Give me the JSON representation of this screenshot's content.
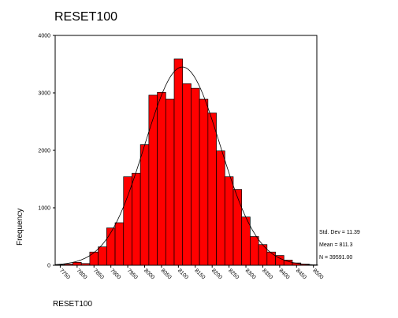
{
  "chart_data": {
    "type": "bar",
    "title": "RESET100",
    "xlabel": "RESET100",
    "ylabel": "Frequency",
    "x_tick_labels": [
      "7750",
      "7800",
      "7850",
      "7900",
      "7950",
      "8000",
      "8050",
      "8100",
      "8150",
      "8200",
      "8250",
      "8300",
      "8350",
      "8400",
      "8450",
      "8500"
    ],
    "y_tick_labels": [
      "0",
      "1000",
      "2000",
      "3000",
      "4000"
    ],
    "ylim": [
      0,
      4000
    ],
    "x_range": [
      7735,
      8510
    ],
    "bin_width": 25,
    "bin_start": 7737.5,
    "values": [
      10,
      20,
      50,
      30,
      230,
      320,
      650,
      740,
      1540,
      1600,
      2100,
      2960,
      3010,
      2890,
      3590,
      3160,
      3080,
      2890,
      2650,
      1990,
      1540,
      1320,
      840,
      500,
      360,
      230,
      170,
      90,
      40,
      20,
      5
    ],
    "fit_curve": "normal",
    "bar_color": "#ff0000",
    "stats": {
      "std_dev": "Std. Dev = 11.39",
      "mean": "Mean = 811.3",
      "n": "N = 39591.00"
    }
  }
}
